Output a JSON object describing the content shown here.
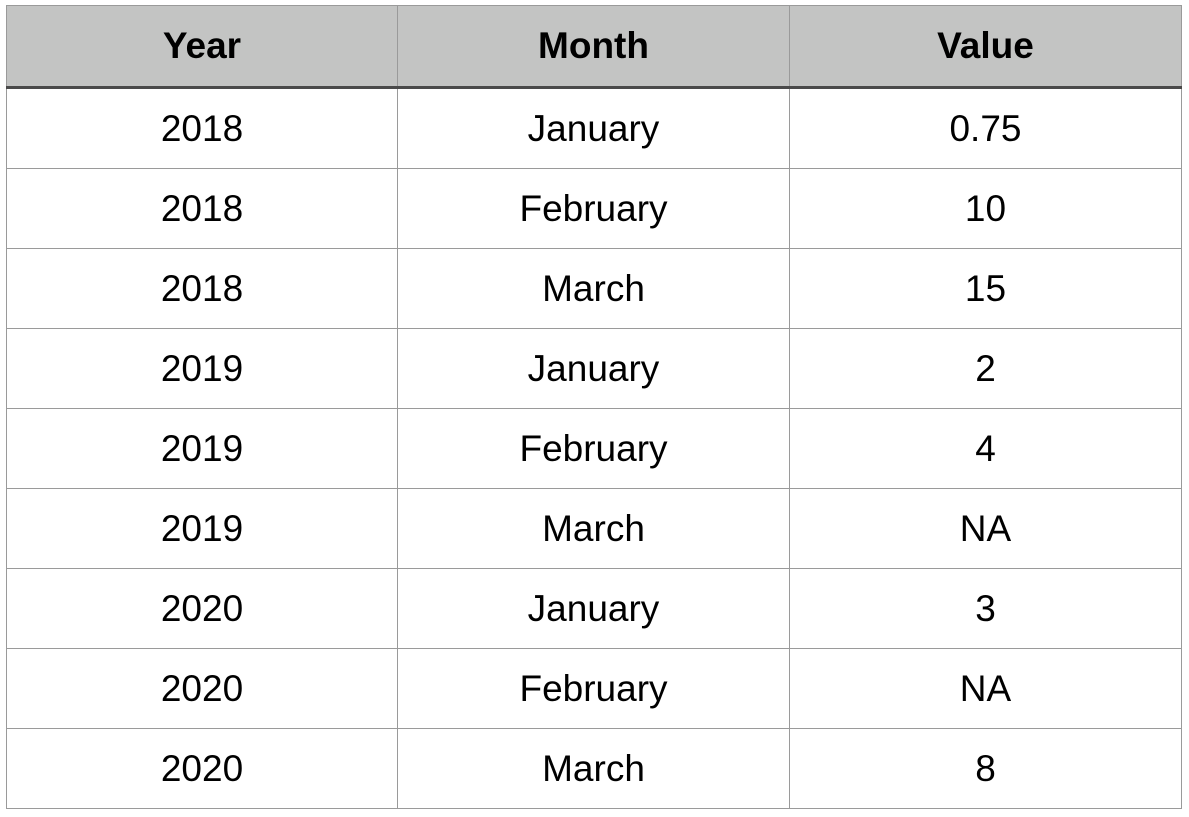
{
  "table": {
    "headers": [
      "Year",
      "Month",
      "Value"
    ],
    "rows": [
      [
        "2018",
        "January",
        "0.75"
      ],
      [
        "2018",
        "February",
        "10"
      ],
      [
        "2018",
        "March",
        "15"
      ],
      [
        "2019",
        "January",
        "2"
      ],
      [
        "2019",
        "February",
        "4"
      ],
      [
        "2019",
        "March",
        "NA"
      ],
      [
        "2020",
        "January",
        "3"
      ],
      [
        "2020",
        "February",
        "NA"
      ],
      [
        "2020",
        "March",
        "8"
      ]
    ]
  },
  "colors": {
    "header_background": "#c3c4c3",
    "grid_line": "#9a9a9a",
    "header_underline": "#4a4a4a"
  }
}
